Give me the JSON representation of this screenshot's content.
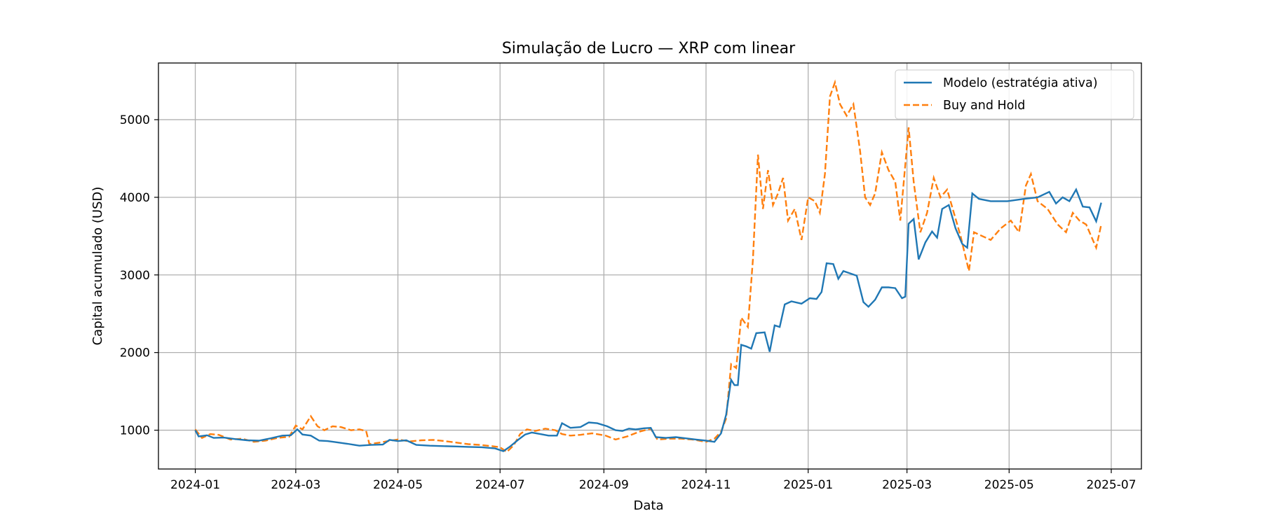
{
  "chart_data": {
    "type": "line",
    "title": "Simulação de Lucro — XRP com linear",
    "xlabel": "Data",
    "ylabel": "Capital acumulado (USD)",
    "x_ticks": [
      "2024-01",
      "2024-03",
      "2024-05",
      "2024-07",
      "2024-09",
      "2024-11",
      "2025-01",
      "2025-03",
      "2025-05",
      "2025-07"
    ],
    "y_ticks": [
      1000,
      2000,
      3000,
      4000,
      5000
    ],
    "xlim": [
      "2023-12-10",
      "2025-07-19"
    ],
    "ylim": [
      500,
      5730
    ],
    "grid": true,
    "legend_position": "top-right",
    "colors": {
      "model": "#1f77b4",
      "buyhold": "#ff7f0e"
    },
    "series": [
      {
        "name": "Modelo (estratégia ativa)",
        "style": "solid",
        "points": [
          [
            "2024-01-01",
            1000
          ],
          [
            "2024-01-03",
            920
          ],
          [
            "2024-01-08",
            935
          ],
          [
            "2024-01-12",
            900
          ],
          [
            "2024-01-18",
            905
          ],
          [
            "2024-01-25",
            885
          ],
          [
            "2024-02-01",
            870
          ],
          [
            "2024-02-08",
            865
          ],
          [
            "2024-02-15",
            895
          ],
          [
            "2024-02-22",
            930
          ],
          [
            "2024-02-27",
            935
          ],
          [
            "2024-03-02",
            1010
          ],
          [
            "2024-03-05",
            945
          ],
          [
            "2024-03-10",
            930
          ],
          [
            "2024-03-15",
            865
          ],
          [
            "2024-03-20",
            860
          ],
          [
            "2024-03-25",
            845
          ],
          [
            "2024-04-01",
            825
          ],
          [
            "2024-04-08",
            800
          ],
          [
            "2024-04-15",
            810
          ],
          [
            "2024-04-22",
            815
          ],
          [
            "2024-04-26",
            875
          ],
          [
            "2024-05-01",
            860
          ],
          [
            "2024-05-06",
            870
          ],
          [
            "2024-05-12",
            810
          ],
          [
            "2024-05-20",
            800
          ],
          [
            "2024-05-28",
            795
          ],
          [
            "2024-06-05",
            790
          ],
          [
            "2024-06-12",
            785
          ],
          [
            "2024-06-20",
            780
          ],
          [
            "2024-06-28",
            765
          ],
          [
            "2024-07-03",
            730
          ],
          [
            "2024-07-07",
            790
          ],
          [
            "2024-07-12",
            880
          ],
          [
            "2024-07-16",
            945
          ],
          [
            "2024-07-20",
            970
          ],
          [
            "2024-07-25",
            950
          ],
          [
            "2024-07-30",
            930
          ],
          [
            "2024-08-04",
            930
          ],
          [
            "2024-08-07",
            1090
          ],
          [
            "2024-08-12",
            1030
          ],
          [
            "2024-08-18",
            1040
          ],
          [
            "2024-08-23",
            1100
          ],
          [
            "2024-08-28",
            1090
          ],
          [
            "2024-09-03",
            1050
          ],
          [
            "2024-09-08",
            1000
          ],
          [
            "2024-09-12",
            990
          ],
          [
            "2024-09-16",
            1020
          ],
          [
            "2024-09-20",
            1010
          ],
          [
            "2024-09-25",
            1025
          ],
          [
            "2024-09-29",
            1030
          ],
          [
            "2024-10-02",
            910
          ],
          [
            "2024-10-08",
            900
          ],
          [
            "2024-10-14",
            910
          ],
          [
            "2024-10-20",
            895
          ],
          [
            "2024-10-26",
            880
          ],
          [
            "2024-11-01",
            865
          ],
          [
            "2024-11-06",
            850
          ],
          [
            "2024-11-10",
            960
          ],
          [
            "2024-11-13",
            1200
          ],
          [
            "2024-11-16",
            1650
          ],
          [
            "2024-11-18",
            1580
          ],
          [
            "2024-11-20",
            1580
          ],
          [
            "2024-11-22",
            2100
          ],
          [
            "2024-11-25",
            2080
          ],
          [
            "2024-11-28",
            2050
          ],
          [
            "2024-12-01",
            2250
          ],
          [
            "2024-12-06",
            2260
          ],
          [
            "2024-12-09",
            2010
          ],
          [
            "2024-12-12",
            2350
          ],
          [
            "2024-12-15",
            2330
          ],
          [
            "2024-12-18",
            2620
          ],
          [
            "2024-12-22",
            2660
          ],
          [
            "2024-12-28",
            2630
          ],
          [
            "2025-01-02",
            2700
          ],
          [
            "2025-01-06",
            2690
          ],
          [
            "2025-01-09",
            2780
          ],
          [
            "2025-01-12",
            3150
          ],
          [
            "2025-01-16",
            3140
          ],
          [
            "2025-01-19",
            2950
          ],
          [
            "2025-01-22",
            3050
          ],
          [
            "2025-01-26",
            3020
          ],
          [
            "2025-01-30",
            2990
          ],
          [
            "2025-02-03",
            2650
          ],
          [
            "2025-02-06",
            2590
          ],
          [
            "2025-02-10",
            2680
          ],
          [
            "2025-02-14",
            2840
          ],
          [
            "2025-02-18",
            2840
          ],
          [
            "2025-02-22",
            2830
          ],
          [
            "2025-02-26",
            2700
          ],
          [
            "2025-02-28",
            2720
          ],
          [
            "2025-03-02",
            3660
          ],
          [
            "2025-03-05",
            3720
          ],
          [
            "2025-03-08",
            3200
          ],
          [
            "2025-03-12",
            3420
          ],
          [
            "2025-03-16",
            3560
          ],
          [
            "2025-03-19",
            3480
          ],
          [
            "2025-03-22",
            3850
          ],
          [
            "2025-03-26",
            3900
          ],
          [
            "2025-03-30",
            3600
          ],
          [
            "2025-04-03",
            3400
          ],
          [
            "2025-04-06",
            3350
          ],
          [
            "2025-04-09",
            4050
          ],
          [
            "2025-04-13",
            3980
          ],
          [
            "2025-04-20",
            3950
          ],
          [
            "2025-04-30",
            3950
          ],
          [
            "2025-05-10",
            3980
          ],
          [
            "2025-05-18",
            4000
          ],
          [
            "2025-05-25",
            4070
          ],
          [
            "2025-05-29",
            3920
          ],
          [
            "2025-06-02",
            4000
          ],
          [
            "2025-06-06",
            3950
          ],
          [
            "2025-06-10",
            4100
          ],
          [
            "2025-06-14",
            3880
          ],
          [
            "2025-06-18",
            3870
          ],
          [
            "2025-06-22",
            3690
          ],
          [
            "2025-06-25",
            3930
          ]
        ]
      },
      {
        "name": "Buy and Hold",
        "style": "dashed",
        "points": [
          [
            "2024-01-01",
            1010
          ],
          [
            "2024-01-05",
            900
          ],
          [
            "2024-01-10",
            950
          ],
          [
            "2024-01-15",
            940
          ],
          [
            "2024-01-22",
            880
          ],
          [
            "2024-01-29",
            890
          ],
          [
            "2024-02-05",
            850
          ],
          [
            "2024-02-12",
            865
          ],
          [
            "2024-02-19",
            900
          ],
          [
            "2024-02-26",
            915
          ],
          [
            "2024-03-01",
            1060
          ],
          [
            "2024-03-05",
            1010
          ],
          [
            "2024-03-10",
            1180
          ],
          [
            "2024-03-14",
            1050
          ],
          [
            "2024-03-18",
            1000
          ],
          [
            "2024-03-23",
            1050
          ],
          [
            "2024-03-28",
            1040
          ],
          [
            "2024-04-03",
            1000
          ],
          [
            "2024-04-08",
            1010
          ],
          [
            "2024-04-12",
            990
          ],
          [
            "2024-04-14",
            820
          ],
          [
            "2024-04-20",
            840
          ],
          [
            "2024-04-25",
            860
          ],
          [
            "2024-05-01",
            880
          ],
          [
            "2024-05-08",
            855
          ],
          [
            "2024-05-15",
            870
          ],
          [
            "2024-05-22",
            875
          ],
          [
            "2024-05-29",
            860
          ],
          [
            "2024-06-05",
            840
          ],
          [
            "2024-06-12",
            820
          ],
          [
            "2024-06-19",
            810
          ],
          [
            "2024-06-26",
            795
          ],
          [
            "2024-07-01",
            780
          ],
          [
            "2024-07-05",
            720
          ],
          [
            "2024-07-09",
            800
          ],
          [
            "2024-07-13",
            950
          ],
          [
            "2024-07-17",
            1010
          ],
          [
            "2024-07-22",
            990
          ],
          [
            "2024-07-28",
            1020
          ],
          [
            "2024-08-03",
            1000
          ],
          [
            "2024-08-07",
            950
          ],
          [
            "2024-08-12",
            930
          ],
          [
            "2024-08-18",
            940
          ],
          [
            "2024-08-25",
            960
          ],
          [
            "2024-09-02",
            930
          ],
          [
            "2024-09-08",
            880
          ],
          [
            "2024-09-15",
            920
          ],
          [
            "2024-09-22",
            980
          ],
          [
            "2024-09-29",
            1020
          ],
          [
            "2024-10-03",
            880
          ],
          [
            "2024-10-10",
            890
          ],
          [
            "2024-10-17",
            890
          ],
          [
            "2024-10-24",
            880
          ],
          [
            "2024-11-01",
            850
          ],
          [
            "2024-11-06",
            890
          ],
          [
            "2024-11-10",
            980
          ],
          [
            "2024-11-13",
            1150
          ],
          [
            "2024-11-16",
            1850
          ],
          [
            "2024-11-19",
            1800
          ],
          [
            "2024-11-22",
            2450
          ],
          [
            "2024-11-26",
            2330
          ],
          [
            "2024-11-29",
            3200
          ],
          [
            "2024-12-02",
            4550
          ],
          [
            "2024-12-05",
            3850
          ],
          [
            "2024-12-08",
            4350
          ],
          [
            "2024-12-11",
            3900
          ],
          [
            "2024-12-14",
            4050
          ],
          [
            "2024-12-17",
            4250
          ],
          [
            "2024-12-20",
            3700
          ],
          [
            "2024-12-24",
            3850
          ],
          [
            "2024-12-28",
            3450
          ],
          [
            "2025-01-01",
            4000
          ],
          [
            "2025-01-05",
            3950
          ],
          [
            "2025-01-08",
            3800
          ],
          [
            "2025-01-11",
            4300
          ],
          [
            "2025-01-14",
            5300
          ],
          [
            "2025-01-17",
            5480
          ],
          [
            "2025-01-20",
            5200
          ],
          [
            "2025-01-24",
            5050
          ],
          [
            "2025-01-28",
            5200
          ],
          [
            "2025-02-01",
            4600
          ],
          [
            "2025-02-04",
            4000
          ],
          [
            "2025-02-07",
            3900
          ],
          [
            "2025-02-10",
            4050
          ],
          [
            "2025-02-14",
            4580
          ],
          [
            "2025-02-18",
            4350
          ],
          [
            "2025-02-22",
            4200
          ],
          [
            "2025-02-25",
            3700
          ],
          [
            "2025-03-02",
            4900
          ],
          [
            "2025-03-05",
            4200
          ],
          [
            "2025-03-09",
            3550
          ],
          [
            "2025-03-13",
            3800
          ],
          [
            "2025-03-17",
            4250
          ],
          [
            "2025-03-21",
            4000
          ],
          [
            "2025-03-25",
            4100
          ],
          [
            "2025-03-29",
            3800
          ],
          [
            "2025-04-02",
            3500
          ],
          [
            "2025-04-07",
            3050
          ],
          [
            "2025-04-10",
            3550
          ],
          [
            "2025-04-15",
            3500
          ],
          [
            "2025-04-20",
            3450
          ],
          [
            "2025-04-26",
            3600
          ],
          [
            "2025-05-02",
            3700
          ],
          [
            "2025-05-07",
            3550
          ],
          [
            "2025-05-11",
            4150
          ],
          [
            "2025-05-14",
            4300
          ],
          [
            "2025-05-18",
            3950
          ],
          [
            "2025-05-24",
            3850
          ],
          [
            "2025-05-30",
            3650
          ],
          [
            "2025-06-04",
            3550
          ],
          [
            "2025-06-08",
            3800
          ],
          [
            "2025-06-12",
            3700
          ],
          [
            "2025-06-16",
            3650
          ],
          [
            "2025-06-20",
            3450
          ],
          [
            "2025-06-22",
            3350
          ],
          [
            "2025-06-25",
            3650
          ]
        ]
      }
    ]
  }
}
